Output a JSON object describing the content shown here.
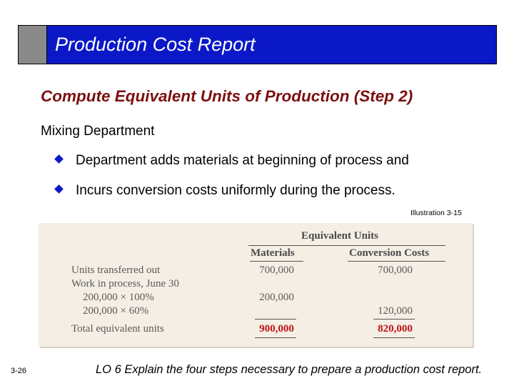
{
  "slide": {
    "title": "Production Cost Report",
    "subtitle": "Compute Equivalent Units of Production (Step 2)",
    "department": "Mixing Department",
    "bullets": [
      "Department adds materials at beginning of process and",
      "Incurs conversion costs uniformly during the process."
    ],
    "illustration_label": "Illustration 3-15",
    "page_number": "3-26",
    "learning_objective": "LO 6  Explain the four steps necessary to prepare a production cost report."
  },
  "table": {
    "group_header": "Equivalent Units",
    "columns": [
      "Materials",
      "Conversion Costs"
    ],
    "rows": [
      {
        "label": "Units transferred out",
        "materials": "700,000",
        "conversion": "700,000"
      },
      {
        "label": "Work in process, June 30",
        "materials": "",
        "conversion": ""
      },
      {
        "label": "200,000 × 100%",
        "materials": "200,000",
        "conversion": ""
      },
      {
        "label": "200,000 × 60%",
        "materials": "",
        "conversion": "120,000"
      },
      {
        "label": "Total equivalent units",
        "materials": "900,000",
        "conversion": "820,000"
      }
    ]
  },
  "colors": {
    "title_bg": "#0b18c8",
    "subtitle": "#7b1010",
    "totals": "#c0141c",
    "table_bg": "#f4eee4"
  }
}
